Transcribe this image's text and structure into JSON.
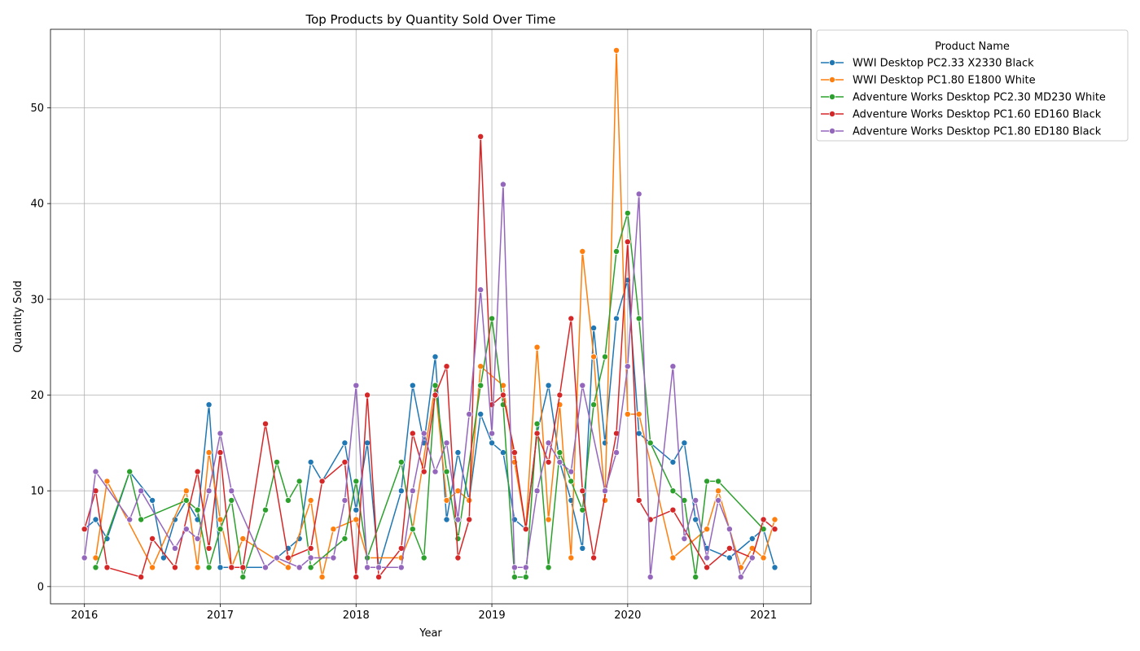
{
  "chart_data": {
    "type": "line",
    "title": "Top Products by Quantity Sold Over Time",
    "xlabel": "Year",
    "ylabel": "Quantity Sold",
    "xlim": [
      2015.75,
      2021.35
    ],
    "ylim": [
      -1.8,
      58.2
    ],
    "x_ticks": [
      2016,
      2017,
      2018,
      2019,
      2020,
      2021
    ],
    "y_ticks": [
      0,
      10,
      20,
      30,
      40,
      50
    ],
    "grid": true,
    "legend_title": "Product Name",
    "legend_position": "outside-top-right",
    "series": [
      {
        "name": "WWI Desktop PC2.33 X2330 Black",
        "color": "#1f77b4",
        "points": [
          [
            2016.0,
            6
          ],
          [
            2016.083,
            7
          ],
          [
            2016.167,
            5
          ],
          [
            2016.333,
            12
          ],
          [
            2016.5,
            9
          ],
          [
            2016.583,
            3
          ],
          [
            2016.667,
            7
          ],
          [
            2016.75,
            9
          ],
          [
            2016.833,
            7
          ],
          [
            2016.917,
            19
          ],
          [
            2017.0,
            2
          ],
          [
            2017.167,
            2
          ],
          [
            2017.333,
            2
          ],
          [
            2017.5,
            4
          ],
          [
            2017.583,
            5
          ],
          [
            2017.667,
            13
          ],
          [
            2017.75,
            11
          ],
          [
            2017.917,
            15
          ],
          [
            2018.0,
            8
          ],
          [
            2018.083,
            15
          ],
          [
            2018.167,
            2
          ],
          [
            2018.333,
            10
          ],
          [
            2018.417,
            21
          ],
          [
            2018.5,
            15
          ],
          [
            2018.583,
            24
          ],
          [
            2018.667,
            7
          ],
          [
            2018.75,
            14
          ],
          [
            2018.833,
            9
          ],
          [
            2018.917,
            18
          ],
          [
            2019.0,
            15
          ],
          [
            2019.083,
            14
          ],
          [
            2019.167,
            7
          ],
          [
            2019.25,
            6
          ],
          [
            2019.333,
            16
          ],
          [
            2019.417,
            21
          ],
          [
            2019.5,
            13
          ],
          [
            2019.583,
            9
          ],
          [
            2019.667,
            4
          ],
          [
            2019.75,
            27
          ],
          [
            2019.833,
            15
          ],
          [
            2019.917,
            28
          ],
          [
            2020.0,
            32
          ],
          [
            2020.083,
            16
          ],
          [
            2020.333,
            13
          ],
          [
            2020.417,
            15
          ],
          [
            2020.5,
            7
          ],
          [
            2020.583,
            4
          ],
          [
            2020.75,
            3
          ],
          [
            2020.917,
            5
          ],
          [
            2021.0,
            6
          ],
          [
            2021.083,
            2
          ]
        ]
      },
      {
        "name": "WWI Desktop PC1.80 E1800 White",
        "color": "#ff7f0e",
        "points": [
          [
            2016.083,
            3
          ],
          [
            2016.167,
            11
          ],
          [
            2016.5,
            2
          ],
          [
            2016.75,
            10
          ],
          [
            2016.833,
            2
          ],
          [
            2016.917,
            14
          ],
          [
            2017.0,
            7
          ],
          [
            2017.083,
            2
          ],
          [
            2017.167,
            5
          ],
          [
            2017.5,
            2
          ],
          [
            2017.667,
            9
          ],
          [
            2017.75,
            1
          ],
          [
            2017.833,
            6
          ],
          [
            2018.0,
            7
          ],
          [
            2018.083,
            3
          ],
          [
            2018.333,
            3
          ],
          [
            2018.417,
            6
          ],
          [
            2018.583,
            21
          ],
          [
            2018.667,
            9
          ],
          [
            2018.75,
            10
          ],
          [
            2018.833,
            9
          ],
          [
            2018.917,
            23
          ],
          [
            2019.083,
            21
          ],
          [
            2019.167,
            13
          ],
          [
            2019.25,
            6
          ],
          [
            2019.333,
            25
          ],
          [
            2019.417,
            7
          ],
          [
            2019.5,
            19
          ],
          [
            2019.583,
            3
          ],
          [
            2019.667,
            35
          ],
          [
            2019.75,
            24
          ],
          [
            2019.833,
            9
          ],
          [
            2019.917,
            56
          ],
          [
            2020.0,
            18
          ],
          [
            2020.083,
            18
          ],
          [
            2020.333,
            3
          ],
          [
            2020.583,
            6
          ],
          [
            2020.667,
            10
          ],
          [
            2020.833,
            2
          ],
          [
            2020.917,
            4
          ],
          [
            2021.0,
            3
          ],
          [
            2021.083,
            7
          ]
        ]
      },
      {
        "name": "Adventure Works Desktop PC2.30 MD230 White",
        "color": "#2ca02c",
        "points": [
          [
            2016.083,
            2
          ],
          [
            2016.333,
            12
          ],
          [
            2016.417,
            7
          ],
          [
            2016.75,
            9
          ],
          [
            2016.833,
            8
          ],
          [
            2016.917,
            2
          ],
          [
            2017.0,
            6
          ],
          [
            2017.083,
            9
          ],
          [
            2017.167,
            1
          ],
          [
            2017.333,
            8
          ],
          [
            2017.417,
            13
          ],
          [
            2017.5,
            9
          ],
          [
            2017.583,
            11
          ],
          [
            2017.667,
            2
          ],
          [
            2017.917,
            5
          ],
          [
            2018.0,
            11
          ],
          [
            2018.083,
            3
          ],
          [
            2018.333,
            13
          ],
          [
            2018.417,
            6
          ],
          [
            2018.5,
            3
          ],
          [
            2018.583,
            21
          ],
          [
            2018.667,
            12
          ],
          [
            2018.75,
            5
          ],
          [
            2018.917,
            21
          ],
          [
            2019.0,
            28
          ],
          [
            2019.083,
            19
          ],
          [
            2019.167,
            1
          ],
          [
            2019.25,
            1
          ],
          [
            2019.333,
            17
          ],
          [
            2019.417,
            2
          ],
          [
            2019.5,
            14
          ],
          [
            2019.583,
            11
          ],
          [
            2019.667,
            8
          ],
          [
            2019.75,
            19
          ],
          [
            2019.833,
            24
          ],
          [
            2019.917,
            35
          ],
          [
            2020.0,
            39
          ],
          [
            2020.083,
            28
          ],
          [
            2020.167,
            15
          ],
          [
            2020.333,
            10
          ],
          [
            2020.417,
            9
          ],
          [
            2020.5,
            1
          ],
          [
            2020.583,
            11
          ],
          [
            2020.667,
            11
          ],
          [
            2021.0,
            6
          ]
        ]
      },
      {
        "name": "Adventure Works Desktop PC1.60 ED160 Black",
        "color": "#d62728",
        "points": [
          [
            2016.0,
            6
          ],
          [
            2016.083,
            10
          ],
          [
            2016.167,
            2
          ],
          [
            2016.417,
            1
          ],
          [
            2016.5,
            5
          ],
          [
            2016.667,
            2
          ],
          [
            2016.833,
            12
          ],
          [
            2016.917,
            4
          ],
          [
            2017.0,
            14
          ],
          [
            2017.083,
            2
          ],
          [
            2017.167,
            2
          ],
          [
            2017.333,
            17
          ],
          [
            2017.5,
            3
          ],
          [
            2017.667,
            4
          ],
          [
            2017.75,
            11
          ],
          [
            2017.917,
            13
          ],
          [
            2018.0,
            1
          ],
          [
            2018.083,
            20
          ],
          [
            2018.167,
            1
          ],
          [
            2018.333,
            4
          ],
          [
            2018.417,
            16
          ],
          [
            2018.5,
            12
          ],
          [
            2018.583,
            20
          ],
          [
            2018.667,
            23
          ],
          [
            2018.75,
            3
          ],
          [
            2018.833,
            7
          ],
          [
            2018.917,
            47
          ],
          [
            2019.0,
            19
          ],
          [
            2019.083,
            20
          ],
          [
            2019.167,
            14
          ],
          [
            2019.25,
            6
          ],
          [
            2019.333,
            16
          ],
          [
            2019.417,
            13
          ],
          [
            2019.5,
            20
          ],
          [
            2019.583,
            28
          ],
          [
            2019.667,
            10
          ],
          [
            2019.75,
            3
          ],
          [
            2019.917,
            16
          ],
          [
            2020.0,
            36
          ],
          [
            2020.083,
            9
          ],
          [
            2020.167,
            7
          ],
          [
            2020.333,
            8
          ],
          [
            2020.583,
            2
          ],
          [
            2020.75,
            4
          ],
          [
            2020.917,
            3
          ],
          [
            2021.0,
            7
          ],
          [
            2021.083,
            6
          ]
        ]
      },
      {
        "name": "Adventure Works Desktop PC1.80 ED180 Black",
        "color": "#9467bd",
        "points": [
          [
            2016.0,
            3
          ],
          [
            2016.083,
            12
          ],
          [
            2016.333,
            7
          ],
          [
            2016.417,
            10
          ],
          [
            2016.667,
            4
          ],
          [
            2016.75,
            6
          ],
          [
            2016.833,
            5
          ],
          [
            2016.917,
            10
          ],
          [
            2017.0,
            16
          ],
          [
            2017.083,
            10
          ],
          [
            2017.333,
            2
          ],
          [
            2017.417,
            3
          ],
          [
            2017.583,
            2
          ],
          [
            2017.667,
            3
          ],
          [
            2017.833,
            3
          ],
          [
            2017.917,
            9
          ],
          [
            2018.0,
            21
          ],
          [
            2018.083,
            2
          ],
          [
            2018.167,
            2
          ],
          [
            2018.333,
            2
          ],
          [
            2018.417,
            10
          ],
          [
            2018.5,
            16
          ],
          [
            2018.583,
            12
          ],
          [
            2018.667,
            15
          ],
          [
            2018.75,
            7
          ],
          [
            2018.833,
            18
          ],
          [
            2018.917,
            31
          ],
          [
            2019.0,
            16
          ],
          [
            2019.083,
            42
          ],
          [
            2019.167,
            2
          ],
          [
            2019.25,
            2
          ],
          [
            2019.333,
            10
          ],
          [
            2019.417,
            15
          ],
          [
            2019.5,
            13
          ],
          [
            2019.583,
            12
          ],
          [
            2019.667,
            21
          ],
          [
            2019.833,
            10
          ],
          [
            2019.917,
            14
          ],
          [
            2020.0,
            23
          ],
          [
            2020.083,
            41
          ],
          [
            2020.167,
            1
          ],
          [
            2020.333,
            23
          ],
          [
            2020.417,
            5
          ],
          [
            2020.5,
            9
          ],
          [
            2020.583,
            3
          ],
          [
            2020.667,
            9
          ],
          [
            2020.75,
            6
          ],
          [
            2020.833,
            1
          ],
          [
            2020.917,
            3
          ]
        ]
      }
    ]
  }
}
